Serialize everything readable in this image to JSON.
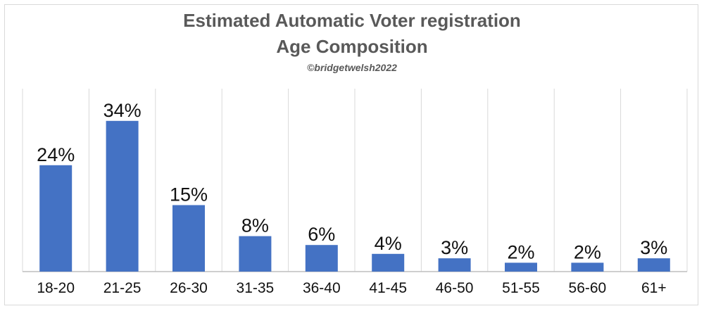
{
  "chart_data": {
    "type": "bar",
    "title_line1": "Estimated Automatic Voter registration",
    "title_line2": "Age  Composition",
    "subtitle": "©bridgetwelsh2022",
    "categories": [
      "18-20",
      "21-25",
      "26-30",
      "31-35",
      "36-40",
      "41-45",
      "46-50",
      "51-55",
      "56-60",
      "61+"
    ],
    "values": [
      24,
      34,
      15,
      8,
      6,
      4,
      3,
      2,
      2,
      3
    ],
    "data_labels": [
      "24%",
      "34%",
      "15%",
      "8%",
      "6%",
      "4%",
      "3%",
      "2%",
      "2%",
      "3%"
    ],
    "unit": "%",
    "bar_color": "#4472c4",
    "gridlines": "vertical category separators",
    "legend": "none"
  }
}
